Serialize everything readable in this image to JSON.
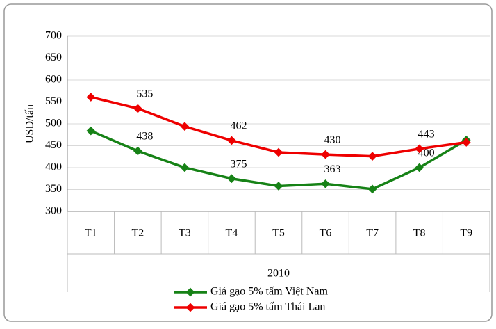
{
  "chart_data": {
    "type": "line",
    "y_label": "USD/tấn",
    "x_group": "2010",
    "categories": [
      "T1",
      "T2",
      "T3",
      "T4",
      "T5",
      "T6",
      "T7",
      "T8",
      "T9"
    ],
    "series": [
      {
        "name": "Giá gạo 5% tấm Việt Nam",
        "color": "#168216",
        "values": [
          484,
          438,
          400,
          375,
          358,
          363,
          351,
          400,
          463
        ],
        "value_labels": [
          null,
          "438",
          null,
          "375",
          null,
          "363",
          null,
          "400",
          null
        ]
      },
      {
        "name": "Giá gạo 5% tấm Thái Lan",
        "color": "#ee0000",
        "values": [
          561,
          535,
          494,
          462,
          435,
          430,
          426,
          443,
          458
        ],
        "value_labels": [
          null,
          "535",
          null,
          "462",
          null,
          "430",
          null,
          "443",
          null
        ]
      }
    ],
    "ylim": [
      300,
      700
    ],
    "yticks": [
      300,
      350,
      400,
      450,
      500,
      550,
      600,
      650,
      700
    ],
    "grid": true
  }
}
